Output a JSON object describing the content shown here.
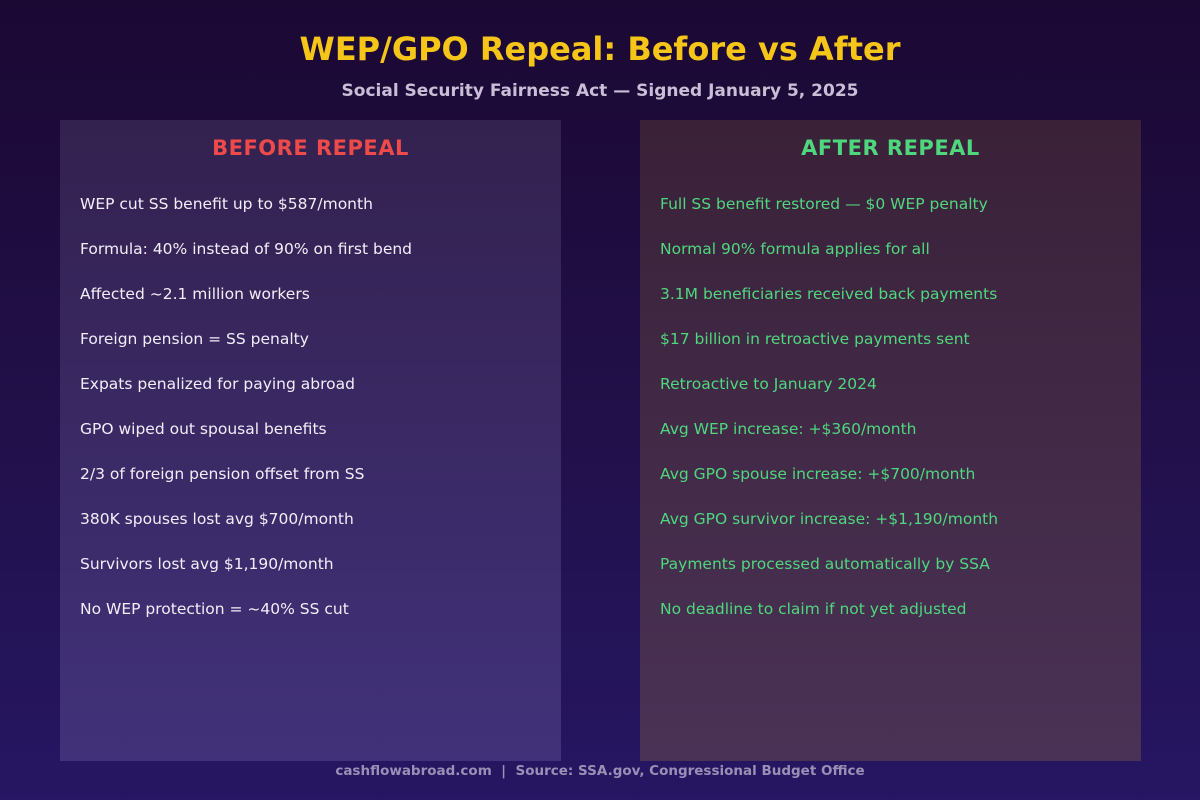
{
  "header": {
    "title": "WEP/GPO Repeal: Before vs After",
    "subtitle": "Social Security Fairness Act — Signed January 5, 2025"
  },
  "before": {
    "heading": "BEFORE REPEAL",
    "items": [
      "WEP cut SS benefit up to $587/month",
      "Formula: 40% instead of 90% on first bend",
      "Affected ~2.1 million workers",
      "Foreign pension = SS penalty",
      "Expats penalized for paying abroad",
      "GPO wiped out spousal benefits",
      "2/3 of foreign pension offset from SS",
      "380K spouses lost avg $700/month",
      "Survivors lost avg $1,190/month",
      "No WEP protection = ~40% SS cut"
    ]
  },
  "after": {
    "heading": "AFTER REPEAL",
    "items": [
      "Full SS benefit restored — $0 WEP penalty",
      "Normal 90% formula applies for all",
      "3.1M beneficiaries received back payments",
      "$17 billion in retroactive payments sent",
      "Retroactive to January 2024",
      "Avg WEP increase: +$360/month",
      "Avg GPO spouse increase: +$700/month",
      "Avg GPO survivor increase: +$1,190/month",
      "Payments processed automatically by SSA",
      "No deadline to claim if not yet adjusted"
    ]
  },
  "footer": {
    "text": "cashflowabroad.com  |  Source: SSA.gov, Congressional Budget Office"
  },
  "colors": {
    "title": "#f5c518",
    "before_heading": "#ef4a4a",
    "after_text": "#4fd77e"
  }
}
